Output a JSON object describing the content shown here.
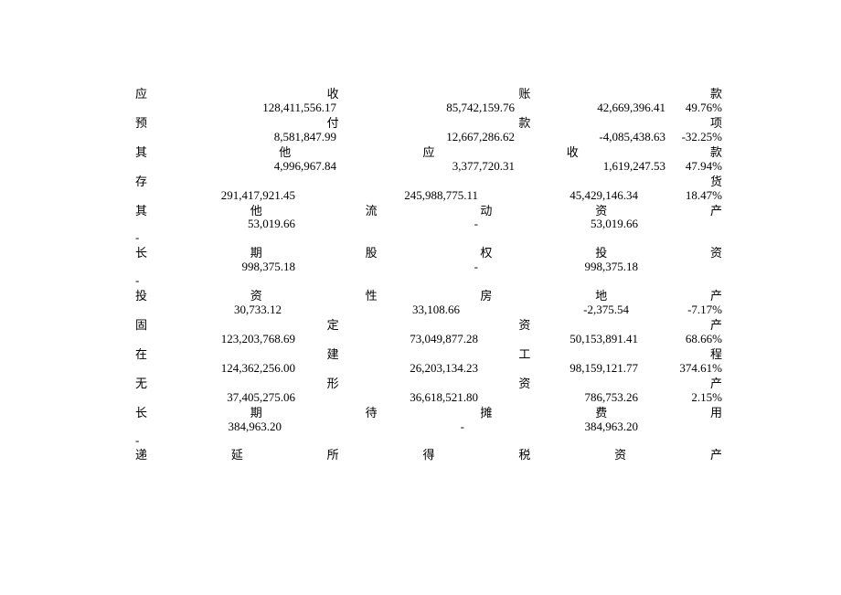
{
  "font_size": 13,
  "text_color": "#000000",
  "background": "#ffffff",
  "cols": {
    "c1": 220,
    "c2": 195,
    "c3": 165,
    "c4": 62
  },
  "rows": [
    {
      "label": [
        "应",
        "收",
        "账",
        "款"
      ],
      "v": [
        "128,411,556.17",
        "85,742,159.76",
        "42,669,396.41",
        "49.76%"
      ]
    },
    {
      "label": [
        "预",
        "付",
        "款",
        "项"
      ],
      "v": [
        "8,581,847.99",
        "12,667,286.62",
        "-4,085,438.63",
        "-32.25%"
      ]
    },
    {
      "label": [
        "其",
        "他",
        "应",
        "收",
        "款"
      ],
      "v": [
        "4,996,967.84",
        "3,377,720.31",
        "1,619,247.53",
        "47.94%"
      ]
    },
    {
      "label": [
        "存",
        "货"
      ],
      "v": [
        "291,417,921.45",
        "245,988,775.11",
        "45,429,146.34",
        "18.47%"
      ],
      "c1w": 175,
      "c2w": 200,
      "c3w": 175,
      "c4w": 92,
      "dash": false
    },
    {
      "label": [
        "其",
        "他",
        "流",
        "动",
        "资",
        "产"
      ],
      "v": [
        "53,019.66",
        "-",
        "53,019.66",
        ""
      ],
      "c1w": 175,
      "c2w": 200,
      "c3w": 175,
      "c4w": 0,
      "dash": true
    },
    {
      "label": [
        "长",
        "期",
        "股",
        "权",
        "投",
        "资"
      ],
      "v": [
        "998,375.18",
        "-",
        "998,375.18",
        ""
      ],
      "c1w": 175,
      "c2w": 200,
      "c3w": 175,
      "c4w": 0,
      "dash": true
    },
    {
      "label": [
        "投",
        "资",
        "性",
        "房",
        "地",
        "产"
      ],
      "v": [
        "30,733.12",
        "33,108.66",
        "-2,375.54",
        "-7.17%"
      ],
      "c1w": 160,
      "c2w": 195,
      "c3w": 185,
      "c4w": 102
    },
    {
      "label": [
        "固",
        "定",
        "资",
        "产"
      ],
      "v": [
        "123,203,768.69",
        "73,049,877.28",
        "50,153,891.41",
        "68.66%"
      ],
      "c1w": 175,
      "c2w": 200,
      "c3w": 175,
      "c4w": 92
    },
    {
      "label": [
        "在",
        "建",
        "工",
        "程"
      ],
      "v": [
        "124,362,256.00",
        "26,203,134.23",
        "98,159,121.77",
        "374.61%"
      ],
      "c1w": 175,
      "c2w": 200,
      "c3w": 175,
      "c4w": 92
    },
    {
      "label": [
        "无",
        "形",
        "资",
        "产"
      ],
      "v": [
        "37,405,275.06",
        "36,618,521.80",
        "786,753.26",
        "2.15%"
      ],
      "c1w": 175,
      "c2w": 200,
      "c3w": 175,
      "c4w": 92
    },
    {
      "label": [
        "长",
        "期",
        "待",
        "摊",
        "费",
        "用"
      ],
      "v": [
        "384,963.20",
        "-",
        "384,963.20",
        ""
      ],
      "c1w": 160,
      "c2w": 200,
      "c3w": 190,
      "c4w": 0,
      "dash": true
    },
    {
      "label": [
        "递",
        "延",
        "所",
        "得",
        "税",
        "资",
        "产"
      ],
      "v": [
        "",
        "",
        "",
        ""
      ],
      "no_vals": true
    }
  ]
}
